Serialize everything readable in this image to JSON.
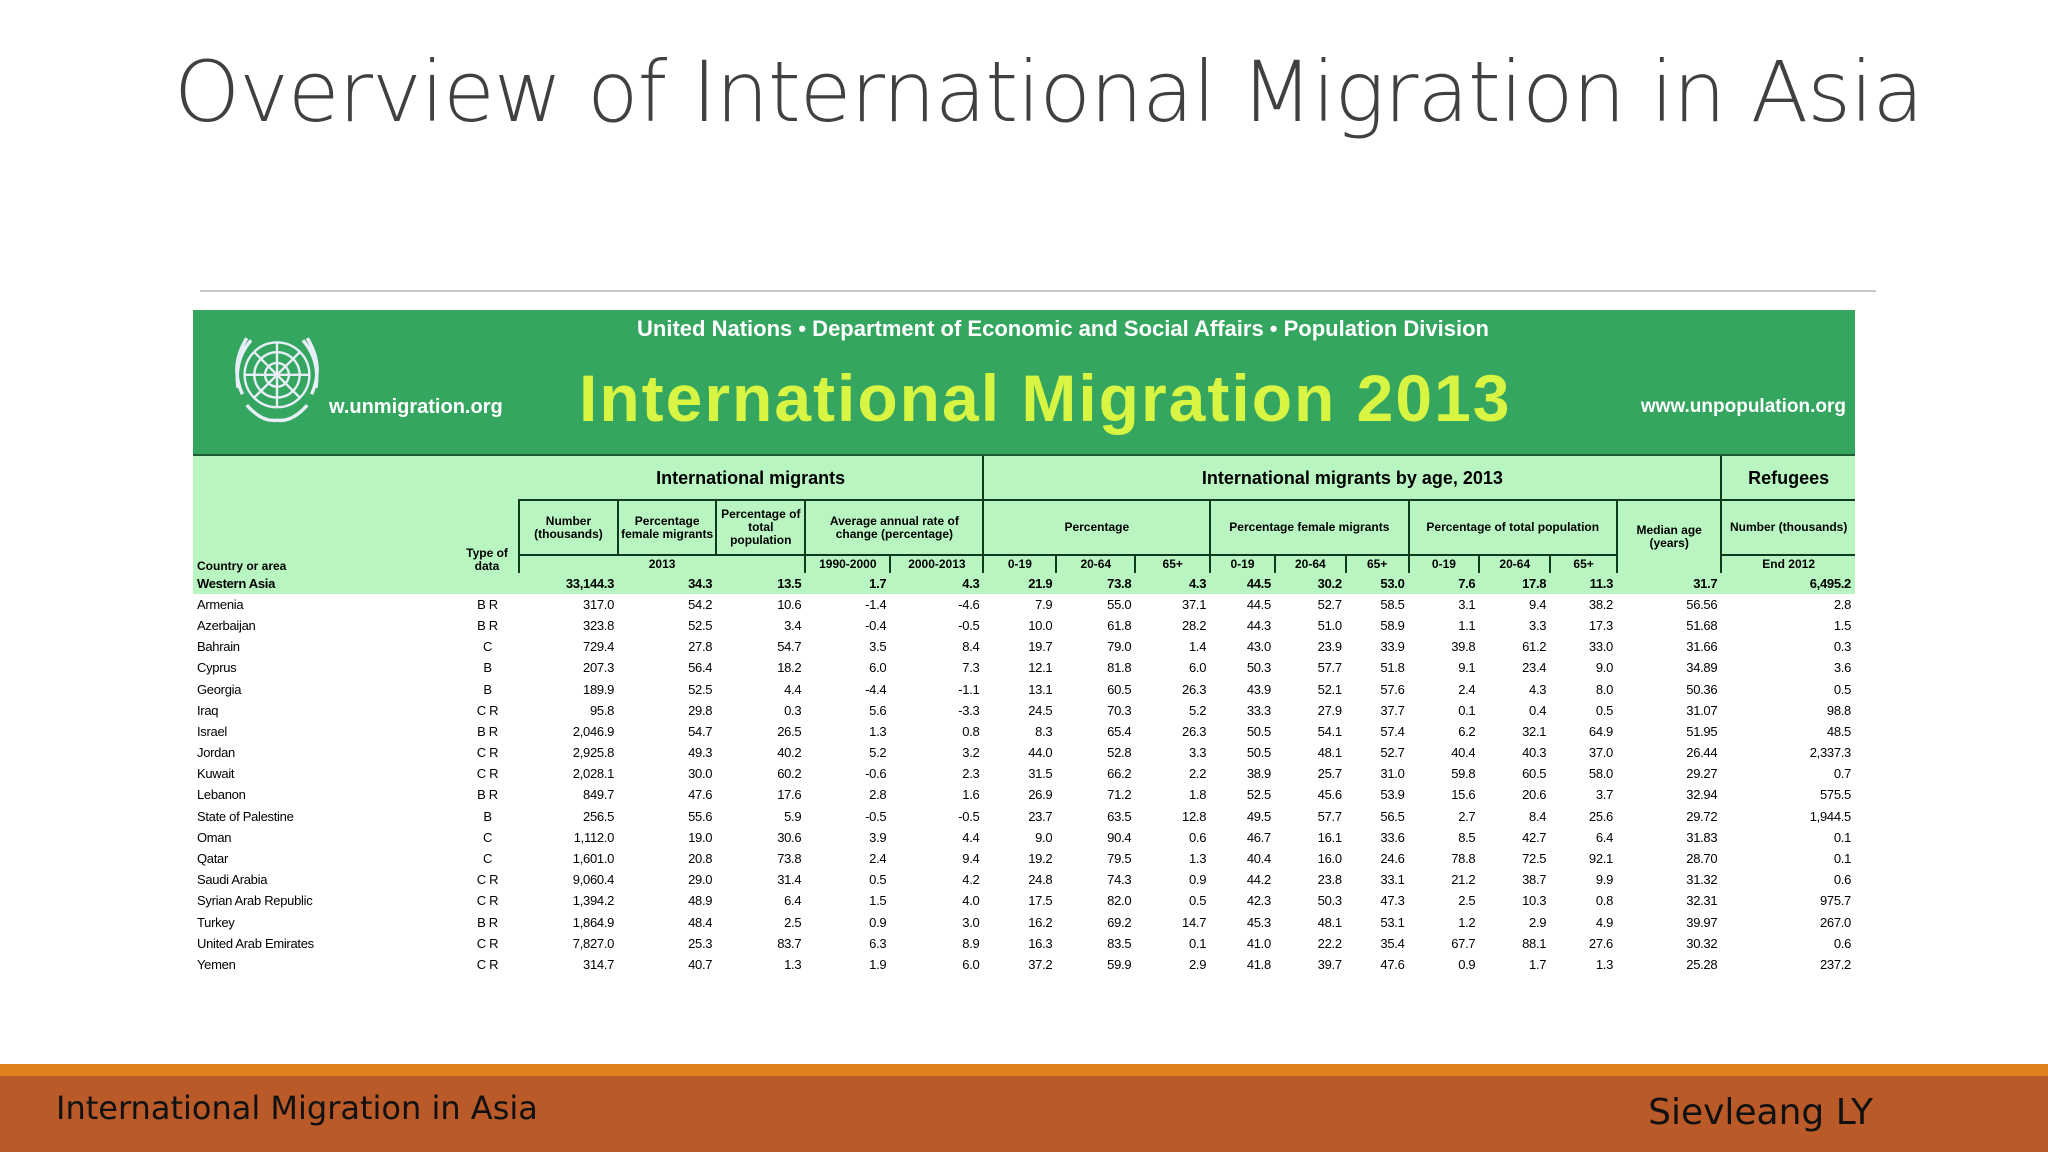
{
  "slide": {
    "title": "Overview of International Migration in Asia",
    "footer_left": "International Migration in Asia",
    "footer_right": "Sievleang LY"
  },
  "banner": {
    "org": "United Nations • Department of Economic and Social Affairs • Population Division",
    "title": "International Migration 2013",
    "url_left": "w.unmigration.org",
    "url_right": "www.unpopulation.org",
    "logo": "un-emblem-icon"
  },
  "table": {
    "groups": {
      "migrants": "International migrants",
      "by_age": "International migrants by age, 2013",
      "refugees": "Refugees"
    },
    "headers": {
      "country": "Country or area",
      "type": "Type of data",
      "number": "Number (thousands)",
      "pct_female": "Percentage female migrants",
      "pct_total": "Percentage of total population",
      "avg_change": "Average annual rate of change (percentage)",
      "percentage": "Percentage",
      "pct_female_age": "Percentage female migrants",
      "pct_total_age": "Percentage of total population",
      "median_age": "Median age (years)",
      "ref_number": "Number (thousands)"
    },
    "years": {
      "y2013": "2013",
      "p1990": "1990-2000",
      "p2000": "2000-2013",
      "end2012": "End 2012"
    },
    "age_bands": [
      "0-19",
      "20-64",
      "65+"
    ],
    "rows": [
      [
        "Western Asia",
        "",
        "33,144.3",
        "34.3",
        "13.5",
        "1.7",
        "4.3",
        "21.9",
        "73.8",
        "4.3",
        "44.5",
        "30.2",
        "53.0",
        "7.6",
        "17.8",
        "11.3",
        "31.7",
        "6,495.2"
      ],
      [
        "Armenia",
        "B R",
        "317.0",
        "54.2",
        "10.6",
        "-1.4",
        "-4.6",
        "7.9",
        "55.0",
        "37.1",
        "44.5",
        "52.7",
        "58.5",
        "3.1",
        "9.4",
        "38.2",
        "56.56",
        "2.8"
      ],
      [
        "Azerbaijan",
        "B R",
        "323.8",
        "52.5",
        "3.4",
        "-0.4",
        "-0.5",
        "10.0",
        "61.8",
        "28.2",
        "44.3",
        "51.0",
        "58.9",
        "1.1",
        "3.3",
        "17.3",
        "51.68",
        "1.5"
      ],
      [
        "Bahrain",
        "C",
        "729.4",
        "27.8",
        "54.7",
        "3.5",
        "8.4",
        "19.7",
        "79.0",
        "1.4",
        "43.0",
        "23.9",
        "33.9",
        "39.8",
        "61.2",
        "33.0",
        "31.66",
        "0.3"
      ],
      [
        "Cyprus",
        "B",
        "207.3",
        "56.4",
        "18.2",
        "6.0",
        "7.3",
        "12.1",
        "81.8",
        "6.0",
        "50.3",
        "57.7",
        "51.8",
        "9.1",
        "23.4",
        "9.0",
        "34.89",
        "3.6"
      ],
      [
        "Georgia",
        "B",
        "189.9",
        "52.5",
        "4.4",
        "-4.4",
        "-1.1",
        "13.1",
        "60.5",
        "26.3",
        "43.9",
        "52.1",
        "57.6",
        "2.4",
        "4.3",
        "8.0",
        "50.36",
        "0.5"
      ],
      [
        "Iraq",
        "C R",
        "95.8",
        "29.8",
        "0.3",
        "5.6",
        "-3.3",
        "24.5",
        "70.3",
        "5.2",
        "33.3",
        "27.9",
        "37.7",
        "0.1",
        "0.4",
        "0.5",
        "31.07",
        "98.8"
      ],
      [
        "Israel",
        "B R",
        "2,046.9",
        "54.7",
        "26.5",
        "1.3",
        "0.8",
        "8.3",
        "65.4",
        "26.3",
        "50.5",
        "54.1",
        "57.4",
        "6.2",
        "32.1",
        "64.9",
        "51.95",
        "48.5"
      ],
      [
        "Jordan",
        "C R",
        "2,925.8",
        "49.3",
        "40.2",
        "5.2",
        "3.2",
        "44.0",
        "52.8",
        "3.3",
        "50.5",
        "48.1",
        "52.7",
        "40.4",
        "40.3",
        "37.0",
        "26.44",
        "2,337.3"
      ],
      [
        "Kuwait",
        "C R",
        "2,028.1",
        "30.0",
        "60.2",
        "-0.6",
        "2.3",
        "31.5",
        "66.2",
        "2.2",
        "38.9",
        "25.7",
        "31.0",
        "59.8",
        "60.5",
        "58.0",
        "29.27",
        "0.7"
      ],
      [
        "Lebanon",
        "B R",
        "849.7",
        "47.6",
        "17.6",
        "2.8",
        "1.6",
        "26.9",
        "71.2",
        "1.8",
        "52.5",
        "45.6",
        "53.9",
        "15.6",
        "20.6",
        "3.7",
        "32.94",
        "575.5"
      ],
      [
        "State of Palestine",
        "B",
        "256.5",
        "55.6",
        "5.9",
        "-0.5",
        "-0.5",
        "23.7",
        "63.5",
        "12.8",
        "49.5",
        "57.7",
        "56.5",
        "2.7",
        "8.4",
        "25.6",
        "29.72",
        "1,944.5"
      ],
      [
        "Oman",
        "C",
        "1,112.0",
        "19.0",
        "30.6",
        "3.9",
        "4.4",
        "9.0",
        "90.4",
        "0.6",
        "46.7",
        "16.1",
        "33.6",
        "8.5",
        "42.7",
        "6.4",
        "31.83",
        "0.1"
      ],
      [
        "Qatar",
        "C",
        "1,601.0",
        "20.8",
        "73.8",
        "2.4",
        "9.4",
        "19.2",
        "79.5",
        "1.3",
        "40.4",
        "16.0",
        "24.6",
        "78.8",
        "72.5",
        "92.1",
        "28.70",
        "0.1"
      ],
      [
        "Saudi Arabia",
        "C R",
        "9,060.4",
        "29.0",
        "31.4",
        "0.5",
        "4.2",
        "24.8",
        "74.3",
        "0.9",
        "44.2",
        "23.8",
        "33.1",
        "21.2",
        "38.7",
        "9.9",
        "31.32",
        "0.6"
      ],
      [
        "Syrian Arab Republic",
        "C R",
        "1,394.2",
        "48.9",
        "6.4",
        "1.5",
        "4.0",
        "17.5",
        "82.0",
        "0.5",
        "42.3",
        "50.3",
        "47.3",
        "2.5",
        "10.3",
        "0.8",
        "32.31",
        "975.7"
      ],
      [
        "Turkey",
        "B R",
        "1,864.9",
        "48.4",
        "2.5",
        "0.9",
        "3.0",
        "16.2",
        "69.2",
        "14.7",
        "45.3",
        "48.1",
        "53.1",
        "1.2",
        "2.9",
        "4.9",
        "39.97",
        "267.0"
      ],
      [
        "United Arab Emirates",
        "C R",
        "7,827.0",
        "25.3",
        "83.7",
        "6.3",
        "8.9",
        "16.3",
        "83.5",
        "0.1",
        "41.0",
        "22.2",
        "35.4",
        "67.7",
        "88.1",
        "27.6",
        "30.32",
        "0.6"
      ],
      [
        "Yemen",
        "C R",
        "314.7",
        "40.7",
        "1.3",
        "1.9",
        "6.0",
        "37.2",
        "59.9",
        "2.9",
        "41.8",
        "39.7",
        "47.6",
        "0.9",
        "1.7",
        "1.3",
        "25.28",
        "237.2"
      ]
    ]
  },
  "colors": {
    "banner_green": "#35a660",
    "title_lime": "#d7f542",
    "header_mint": "#b9f5c1",
    "footer_orange": "#e0811d",
    "footer_rust": "#bb5a29"
  }
}
